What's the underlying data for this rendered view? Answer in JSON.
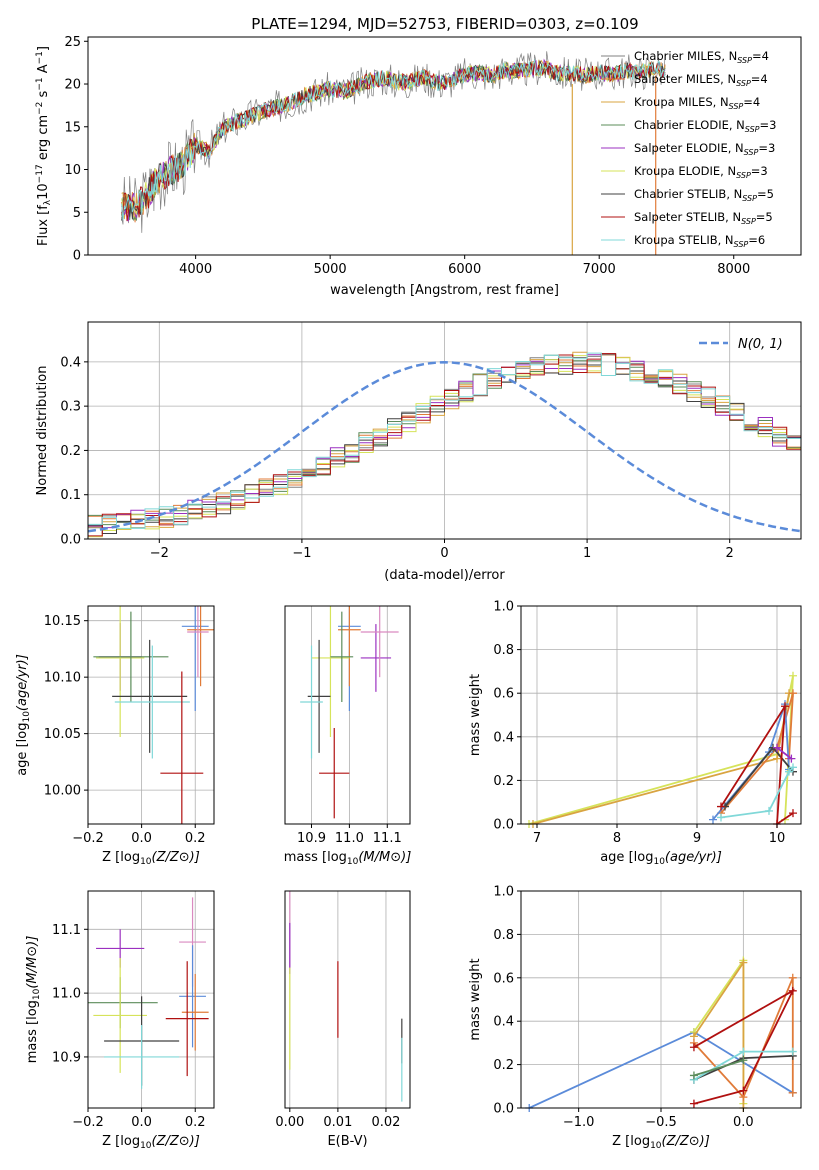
{
  "figure": {
    "title": "PLATE=1294, MJD=52753, FIBERID=0303, z=0.109"
  },
  "chart_data": [
    {
      "id": "spectrum",
      "type": "line",
      "xlabel": "wavelength [Angstrom, rest frame]",
      "ylabel": "Flux [f",
      "ylabel_full": "Flux [f_λ 10^-17 erg cm^-2 s^-1 A^-1]",
      "xlim": [
        3200,
        8500
      ],
      "ylim": [
        0,
        25.5
      ],
      "xticks": [
        4000,
        5000,
        6000,
        7000,
        8000
      ],
      "yticks": [
        0,
        5,
        10,
        15,
        20,
        25
      ],
      "x": [
        3450,
        3550,
        3650,
        3700,
        3800,
        3900,
        4000,
        4100,
        4200,
        4300,
        4400,
        4500,
        4600,
        4700,
        4800,
        4900,
        5000,
        5100,
        5200,
        5300,
        5400,
        5500,
        5600,
        5700,
        5800,
        5900,
        6000,
        6100,
        6200,
        6300,
        6400,
        6500,
        6600,
        6700,
        6800,
        6900,
        7000,
        7100,
        7200,
        7300,
        7400,
        7500
      ],
      "y": [
        5.8,
        5.5,
        7.2,
        8.5,
        9.8,
        10.5,
        12.8,
        12.2,
        14.8,
        15.6,
        16.2,
        16.8,
        17.3,
        17.8,
        18.6,
        19.0,
        19.4,
        19.1,
        19.7,
        20.4,
        20.7,
        20.2,
        20.3,
        20.8,
        20.1,
        20.4,
        21.1,
        21.3,
        21.0,
        21.6,
        21.5,
        21.8,
        21.9,
        21.2,
        21.3,
        21.0,
        21.4,
        21.1,
        21.6,
        21.3,
        21.8,
        21.6
      ],
      "series": [
        {
          "name": "Chabrier MILES, N",
          "sub": "SSP",
          "suffix": "=4",
          "color": "#808080"
        },
        {
          "name": "Salpeter MILES, N",
          "sub": "SSP",
          "suffix": "=4",
          "color": "#e07b39"
        },
        {
          "name": "Kroupa MILES, N",
          "sub": "SSP",
          "suffix": "=4",
          "color": "#d9a441"
        },
        {
          "name": "Chabrier ELODIE, N",
          "sub": "SSP",
          "suffix": "=3",
          "color": "#5b8c5a"
        },
        {
          "name": "Salpeter ELODIE, N",
          "sub": "SSP",
          "suffix": "=3",
          "color": "#9b30c0"
        },
        {
          "name": "Kroupa ELODIE, N",
          "sub": "SSP",
          "suffix": "=3",
          "color": "#d6e35a"
        },
        {
          "name": "Chabrier STELIB, N",
          "sub": "SSP",
          "suffix": "=5",
          "color": "#404040"
        },
        {
          "name": "Salpeter STELIB, N",
          "sub": "SSP",
          "suffix": "=5",
          "color": "#b01010"
        },
        {
          "name": "Kroupa STELIB, N",
          "sub": "SSP",
          "suffix": "=6",
          "color": "#80d8d8"
        }
      ]
    },
    {
      "id": "residuals",
      "type": "histogram",
      "xlabel": "(data-model)/error",
      "ylabel": "Normed distribution",
      "xlim": [
        -2.5,
        2.5
      ],
      "ylim": [
        0,
        0.49
      ],
      "xticks": [
        -2,
        -1,
        0,
        1,
        2
      ],
      "yticks": [
        0.0,
        0.1,
        0.2,
        0.3,
        0.4
      ],
      "bin_width": 0.1,
      "bin_start": -2.5,
      "base": [
        0.03,
        0.033,
        0.036,
        0.04,
        0.045,
        0.05,
        0.056,
        0.063,
        0.071,
        0.08,
        0.09,
        0.1,
        0.112,
        0.124,
        0.137,
        0.151,
        0.166,
        0.182,
        0.198,
        0.215,
        0.232,
        0.25,
        0.267,
        0.285,
        0.302,
        0.318,
        0.334,
        0.348,
        0.361,
        0.372,
        0.381,
        0.389,
        0.394,
        0.397,
        0.398,
        0.397,
        0.394,
        0.389,
        0.381,
        0.372,
        0.361,
        0.348,
        0.334,
        0.318,
        0.302,
        0.285,
        0.267,
        0.25,
        0.232,
        0.215,
        0.198,
        0.182,
        0.166,
        0.151,
        0.137,
        0.124,
        0.112,
        0.1,
        0.09,
        0.08,
        0.071,
        0.063,
        0.056,
        0.05,
        0.045,
        0.04,
        0.036,
        0.033,
        0.03
      ],
      "series": [
        {
          "name": "Chabrier MILES",
          "color": "#808080"
        },
        {
          "name": "Salpeter MILES",
          "color": "#e07b39"
        },
        {
          "name": "Kroupa MILES",
          "color": "#d9a441"
        },
        {
          "name": "Chabrier ELODIE",
          "color": "#5b8c5a"
        },
        {
          "name": "Salpeter ELODIE",
          "color": "#9b30c0"
        },
        {
          "name": "Kroupa ELODIE",
          "color": "#d6e35a"
        },
        {
          "name": "Chabrier STELIB",
          "color": "#404040"
        },
        {
          "name": "Salpeter STELIB",
          "color": "#b01010"
        },
        {
          "name": "Kroupa STELIB",
          "color": "#80d8d8"
        }
      ],
      "gaussian": {
        "label": "N(0, 1)",
        "color": "#5b8bd9"
      }
    },
    {
      "id": "age_vs_Z",
      "type": "scatter",
      "xlabel": "Z [log",
      "ylabel": "age  [log",
      "xlim": [
        -0.2,
        0.27
      ],
      "ylim": [
        9.97,
        10.163
      ],
      "xticks": [
        -0.2,
        0.0,
        0.2
      ],
      "yticks": [
        10.0,
        10.05,
        10.1,
        10.15
      ],
      "points": [
        {
          "x": 0.2,
          "y": 10.145,
          "xerr": 0.05,
          "yerr": 0.075,
          "color": "#5b8bd9"
        },
        {
          "x": 0.22,
          "y": 10.142,
          "xerr": 0.05,
          "yerr": 0.05,
          "color": "#e07b39"
        },
        {
          "x": -0.08,
          "y": 10.118,
          "xerr": 0.08,
          "yerr": 0.03,
          "color": "#9b30c0"
        },
        {
          "x": -0.08,
          "y": 10.117,
          "xerr": 0.09,
          "yerr": 0.07,
          "color": "#d6e35a"
        },
        {
          "x": -0.04,
          "y": 10.118,
          "xerr": 0.14,
          "yerr": 0.04,
          "color": "#5b8c5a"
        },
        {
          "x": 0.03,
          "y": 10.083,
          "xerr": 0.14,
          "yerr": 0.05,
          "color": "#404040"
        },
        {
          "x": 0.04,
          "y": 10.078,
          "xerr": 0.14,
          "yerr": 0.05,
          "color": "#80d8d8"
        },
        {
          "x": 0.15,
          "y": 10.015,
          "xerr": 0.08,
          "yerr": 0.09,
          "color": "#b01010"
        },
        {
          "x": 0.21,
          "y": 10.14,
          "xerr": 0.04,
          "yerr": 0.04,
          "color": "#d98ac0"
        }
      ]
    },
    {
      "id": "age_vs_mass",
      "type": "scatter",
      "xlabel": "mass [log",
      "ylabel": "",
      "xlim": [
        10.83,
        11.16
      ],
      "ylim": [
        9.97,
        10.163
      ],
      "xticks": [
        10.9,
        11.0,
        11.1
      ],
      "points": [
        {
          "x": 11.0,
          "y": 10.145,
          "xerr": 0.03,
          "yerr": 0.075,
          "color": "#5b8bd9"
        },
        {
          "x": 11.0,
          "y": 10.142,
          "xerr": 0.03,
          "yerr": 0.05,
          "color": "#e07b39"
        },
        {
          "x": 11.07,
          "y": 10.117,
          "xerr": 0.04,
          "yerr": 0.03,
          "color": "#9b30c0"
        },
        {
          "x": 10.95,
          "y": 10.117,
          "xerr": 0.05,
          "yerr": 0.07,
          "color": "#d6e35a"
        },
        {
          "x": 10.98,
          "y": 10.118,
          "xerr": 0.03,
          "yerr": 0.04,
          "color": "#5b8c5a"
        },
        {
          "x": 10.92,
          "y": 10.083,
          "xerr": 0.03,
          "yerr": 0.05,
          "color": "#404040"
        },
        {
          "x": 10.9,
          "y": 10.078,
          "xerr": 0.03,
          "yerr": 0.05,
          "color": "#80d8d8"
        },
        {
          "x": 10.96,
          "y": 10.015,
          "xerr": 0.04,
          "yerr": 0.04,
          "color": "#b01010"
        },
        {
          "x": 11.08,
          "y": 10.14,
          "xerr": 0.05,
          "yerr": 0.04,
          "color": "#d98ac0"
        }
      ]
    },
    {
      "id": "mass_weight_vs_age",
      "type": "line",
      "xlabel": "age  [log",
      "ylabel": "mass weight",
      "xlim": [
        6.8,
        10.3
      ],
      "ylim": [
        0,
        1.0
      ],
      "xticks": [
        7,
        8,
        9,
        10
      ],
      "yticks": [
        0.0,
        0.2,
        0.4,
        0.6,
        0.8,
        1.0
      ],
      "series": [
        {
          "color": "#d6e35a",
          "x": [
            6.9,
            10.0,
            10.2,
            10.1
          ],
          "y": [
            0.0,
            0.32,
            0.68,
            0.02
          ]
        },
        {
          "color": "#d9a441",
          "x": [
            6.95,
            10.0,
            10.15
          ],
          "y": [
            0.0,
            0.3,
            0.6
          ]
        },
        {
          "color": "#e07b39",
          "x": [
            9.3,
            10.0,
            10.2,
            10.15
          ],
          "y": [
            0.05,
            0.35,
            0.6,
            0.3
          ]
        },
        {
          "color": "#5b8bd9",
          "x": [
            9.2,
            9.9,
            10.1,
            10.15
          ],
          "y": [
            0.02,
            0.33,
            0.55,
            0.25
          ]
        },
        {
          "color": "#404040",
          "x": [
            9.35,
            9.95,
            10.2
          ],
          "y": [
            0.08,
            0.35,
            0.24
          ]
        },
        {
          "color": "#b01010",
          "x": [
            9.3,
            10.1,
            10.0,
            10.2
          ],
          "y": [
            0.08,
            0.54,
            0.0,
            0.05
          ]
        },
        {
          "color": "#80d8d8",
          "x": [
            9.3,
            9.9,
            10.15,
            10.2
          ],
          "y": [
            0.03,
            0.06,
            0.24,
            0.26
          ]
        },
        {
          "color": "#9b30c0",
          "x": [
            10.0,
            10.18
          ],
          "y": [
            0.35,
            0.3
          ]
        }
      ]
    },
    {
      "id": "mass_vs_Z",
      "type": "scatter",
      "xlabel": "Z [log",
      "ylabel": "mass [log",
      "xlim": [
        -0.2,
        0.27
      ],
      "ylim": [
        10.82,
        11.16
      ],
      "xticks": [
        -0.2,
        0.0,
        0.2
      ],
      "yticks": [
        10.9,
        11.0,
        11.1
      ],
      "points": [
        {
          "x": -0.08,
          "y": 11.07,
          "xerr": 0.09,
          "yerr": 0.03,
          "color": "#9b30c0"
        },
        {
          "x": 0.19,
          "y": 11.08,
          "xerr": 0.05,
          "yerr": 0.07,
          "color": "#d98ac0"
        },
        {
          "x": -0.08,
          "y": 10.985,
          "xerr": 0.14,
          "yerr": 0.04,
          "color": "#5b8c5a"
        },
        {
          "x": 0.19,
          "y": 10.995,
          "xerr": 0.05,
          "yerr": 0.08,
          "color": "#5b8bd9"
        },
        {
          "x": 0.2,
          "y": 10.97,
          "xerr": 0.05,
          "yerr": 0.06,
          "color": "#e07b39"
        },
        {
          "x": 0.17,
          "y": 10.96,
          "xerr": 0.08,
          "yerr": 0.09,
          "color": "#b01010"
        },
        {
          "x": -0.08,
          "y": 10.965,
          "xerr": 0.1,
          "yerr": 0.09,
          "color": "#d6e35a"
        },
        {
          "x": 0.0,
          "y": 10.925,
          "xerr": 0.14,
          "yerr": 0.07,
          "color": "#404040"
        },
        {
          "x": 0.0,
          "y": 10.9,
          "xerr": 0.14,
          "yerr": 0.05,
          "color": "#80d8d8"
        }
      ]
    },
    {
      "id": "mass_vs_ebv",
      "type": "scatter",
      "xlabel": "E(B-V)",
      "ylabel": "",
      "xlim": [
        -0.001,
        0.025
      ],
      "ylim": [
        10.82,
        11.16
      ],
      "xticks": [
        0.0,
        0.01,
        0.02
      ],
      "points": [
        {
          "x": 0.0,
          "y": 11.1,
          "xerr": 0,
          "yerr": 0.06,
          "color": "#d98ac0"
        },
        {
          "x": 0.0,
          "y": 11.07,
          "xerr": 0,
          "yerr": 0.04,
          "color": "#9b30c0"
        },
        {
          "x": 0.0,
          "y": 10.96,
          "xerr": 0,
          "yerr": 0.08,
          "color": "#d6e35a"
        },
        {
          "x": 0.01,
          "y": 10.99,
          "xerr": 0,
          "yerr": 0.06,
          "color": "#b01010"
        },
        {
          "x": 0.0233,
          "y": 10.925,
          "xerr": 0,
          "yerr": 0.035,
          "color": "#404040"
        },
        {
          "x": 0.0233,
          "y": 10.88,
          "xerr": 0,
          "yerr": 0.05,
          "color": "#80d8d8"
        }
      ]
    },
    {
      "id": "mass_weight_vs_Z",
      "type": "line",
      "xlabel": "Z [log",
      "ylabel": "mass weight",
      "xlim": [
        -1.35,
        0.35
      ],
      "ylim": [
        0,
        1.0
      ],
      "xticks": [
        -1.0,
        -0.5,
        0.0
      ],
      "yticks": [
        0.0,
        0.2,
        0.4,
        0.6,
        0.8,
        1.0
      ],
      "series": [
        {
          "color": "#5b8bd9",
          "x": [
            -1.3,
            -0.3,
            0.3
          ],
          "y": [
            0.0,
            0.35,
            0.07
          ]
        },
        {
          "color": "#d6e35a",
          "x": [
            -0.3,
            0.0,
            0.0
          ],
          "y": [
            0.35,
            0.68,
            0.02
          ]
        },
        {
          "color": "#d9a441",
          "x": [
            -0.3,
            0.0,
            0.0
          ],
          "y": [
            0.33,
            0.67,
            0.0
          ]
        },
        {
          "color": "#e07b39",
          "x": [
            -0.3,
            0.0,
            0.3,
            0.3
          ],
          "y": [
            0.3,
            0.05,
            0.6,
            0.07
          ]
        },
        {
          "color": "#404040",
          "x": [
            -0.3,
            0.0,
            0.3
          ],
          "y": [
            0.13,
            0.23,
            0.24
          ]
        },
        {
          "color": "#b01010",
          "x": [
            -0.3,
            0.0,
            0.3,
            -0.3
          ],
          "y": [
            0.02,
            0.08,
            0.54,
            0.28
          ]
        },
        {
          "color": "#80d8d8",
          "x": [
            -0.3,
            0.0,
            0.3
          ],
          "y": [
            0.13,
            0.26,
            0.26
          ]
        },
        {
          "color": "#5b8c5a",
          "x": [
            -0.3,
            0.0
          ],
          "y": [
            0.15,
            0.22
          ]
        }
      ]
    }
  ]
}
